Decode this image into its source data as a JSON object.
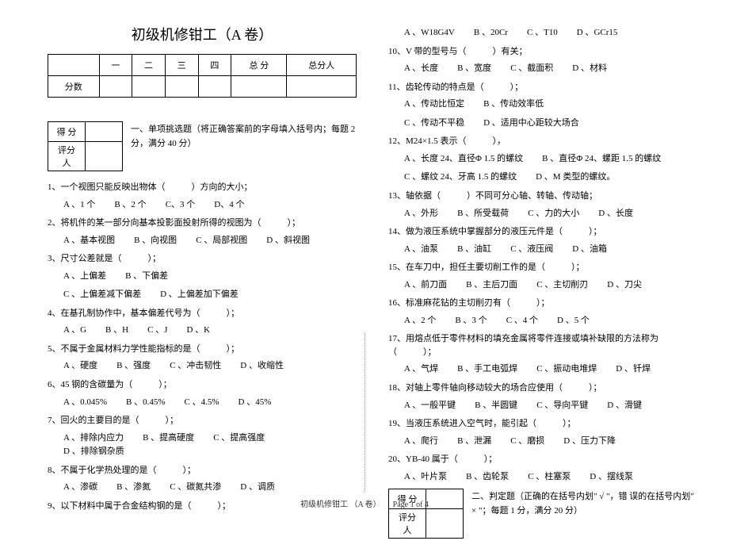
{
  "title": "初级机修钳工（A 卷）",
  "scoreHeaders": [
    "",
    "一",
    "二",
    "三",
    "四",
    "总 分",
    "总分人"
  ],
  "scoreRowLabel": "分数",
  "smallTable": {
    "r1": "得 分",
    "r2": "评分人"
  },
  "section1Desc": "一、单项挑选题（将正确答案前的字母填入括号内；每题 2 分，满分 40 分）",
  "section2Desc": "二、判定题（正确的在括号内划\" √ \"，错 误的在括号内划\" × \"；每题 1 分，满分 20 分）",
  "left": [
    {
      "n": "1",
      "t": "、一个视图只能反映出物体（　　　）方向的大小；",
      "opts": [
        "A 、1 个",
        "B 、2 个",
        "C、3 个",
        "D、4 个"
      ]
    },
    {
      "n": "2",
      "t": "、将机件的某一部分向基本投影面投射所得的视图为（　　　）；",
      "opts": [
        "A 、基本视图",
        "B 、向视图",
        "C 、局部视图",
        "D 、斜视图"
      ]
    },
    {
      "n": "3",
      "t": "、尺寸公差就是（　　　）；",
      "opts": [
        "A 、上偏差",
        "B 、下偏差",
        "C 、上偏差减下偏差",
        "D 、上偏差加下偏差"
      ],
      "two": true
    },
    {
      "n": "4",
      "t": "、在基孔制协作中，基本偏差代号为（　　　）；",
      "opts": [
        "A 、G",
        "B 、H",
        "C 、J",
        "D 、K"
      ]
    },
    {
      "n": "5",
      "t": "、不属于金属材料力学性能指标的是（　　　）；",
      "opts": [
        "A 、硬度",
        "B 、强度",
        "C 、冲击韧性",
        "D 、收缩性"
      ]
    },
    {
      "n": "6",
      "t": "、45 钢的含碳量为（　　　）；",
      "opts": [
        "A 、0.045%",
        "B 、0.45%",
        "C 、4.5%",
        "D 、45%"
      ]
    },
    {
      "n": "7",
      "t": "、回火的主要目的是（　　　）；",
      "opts": [
        "A 、排除内应力",
        "B 、提高硬度",
        "C 、提高强度",
        "D 、排除钢杂质"
      ]
    },
    {
      "n": "8",
      "t": "、不属于化学热处理的是（　　　）；",
      "opts": [
        "A 、渗碳",
        "B 、渗氮",
        "C 、碳氮共渗",
        "D 、调质"
      ]
    },
    {
      "n": "9",
      "t": "、以下材料中属于合金结构钢的是（　　　）；",
      "opts": []
    }
  ],
  "right": [
    {
      "n": "",
      "t": "",
      "opts": [
        "A 、W18G4V",
        "B 、20Cr",
        "C 、T10",
        "D 、GCr15"
      ]
    },
    {
      "n": "10",
      "t": "、V 带的型号与（　　　）有关；",
      "opts": [
        "A 、长度",
        "B 、宽度",
        "C 、截面积",
        "D 、材料"
      ]
    },
    {
      "n": "11",
      "t": "、齿轮传动的特点是（　　　）；",
      "opts": [
        "A 、传动比恒定",
        "B 、传动效率低",
        "C 、传动不平稳",
        "D 、适用中心距较大场合"
      ],
      "two": true
    },
    {
      "n": "12",
      "t": "、M24×1.5 表示（　　　），",
      "opts": [
        "A 、长度 24、直径Φ 1.5 的螺纹",
        "B 、直径Φ 24、螺距 1.5 的螺纹",
        "C 、螺纹 24、牙高 1.5 的螺纹",
        "D 、M 类型的螺纹。"
      ],
      "two": true
    },
    {
      "n": "13",
      "t": "、轴依据（　　　）不同可分心轴、转轴、传动轴；",
      "opts": [
        "A 、外形",
        "B 、所受载荷",
        "C 、力的大小",
        "D 、长度"
      ]
    },
    {
      "n": "14",
      "t": "、做为液压系统中掌握部分的液压元件是（　　　）；",
      "opts": [
        "A 、油泵",
        "B 、油缸",
        "C 、液压阀",
        "D 、油箱"
      ]
    },
    {
      "n": "15",
      "t": "、在车刀中，担任主要切削工作的是（　　　）；",
      "opts": [
        "A 、前刀面",
        "B 、主后刀面",
        "C 、主切削刃",
        "D 、刀尖"
      ]
    },
    {
      "n": "16",
      "t": "、标准麻花钻的主切削刃有（　　　）；",
      "opts": [
        "A 、2 个",
        "B 、3 个",
        "C 、4 个",
        "D 、5 个"
      ]
    },
    {
      "n": "17",
      "t": "、用熔点低于零件材料的填充金属将零件连接或填补缺限的方法称为（　　　）；",
      "opts": [
        "A 、气焊",
        "B 、手工电弧焊",
        "C 、振动电堆焊",
        "D 、钎焊"
      ]
    },
    {
      "n": "18",
      "t": "、对轴上零件轴向移动较大的场合应使用（　　　）；",
      "opts": [
        "A 、一般平键",
        "B 、半圆键",
        "C 、导向平键",
        "D 、滑键"
      ]
    },
    {
      "n": "19",
      "t": "、当液压系统进入空气时，能引起（　　　）；",
      "opts": [
        "A 、爬行",
        "B 、泄漏",
        "C 、磨损",
        "D 、压力下降"
      ]
    },
    {
      "n": "20",
      "t": "、YB-40 属于（　　　）；",
      "opts": [
        "A 、叶片泵",
        "B 、齿轮泵",
        "C 、柱塞泵",
        "D 、摆线泵"
      ]
    }
  ],
  "footer": "初级机修钳工 （A 卷）　　Page 1 of 4"
}
